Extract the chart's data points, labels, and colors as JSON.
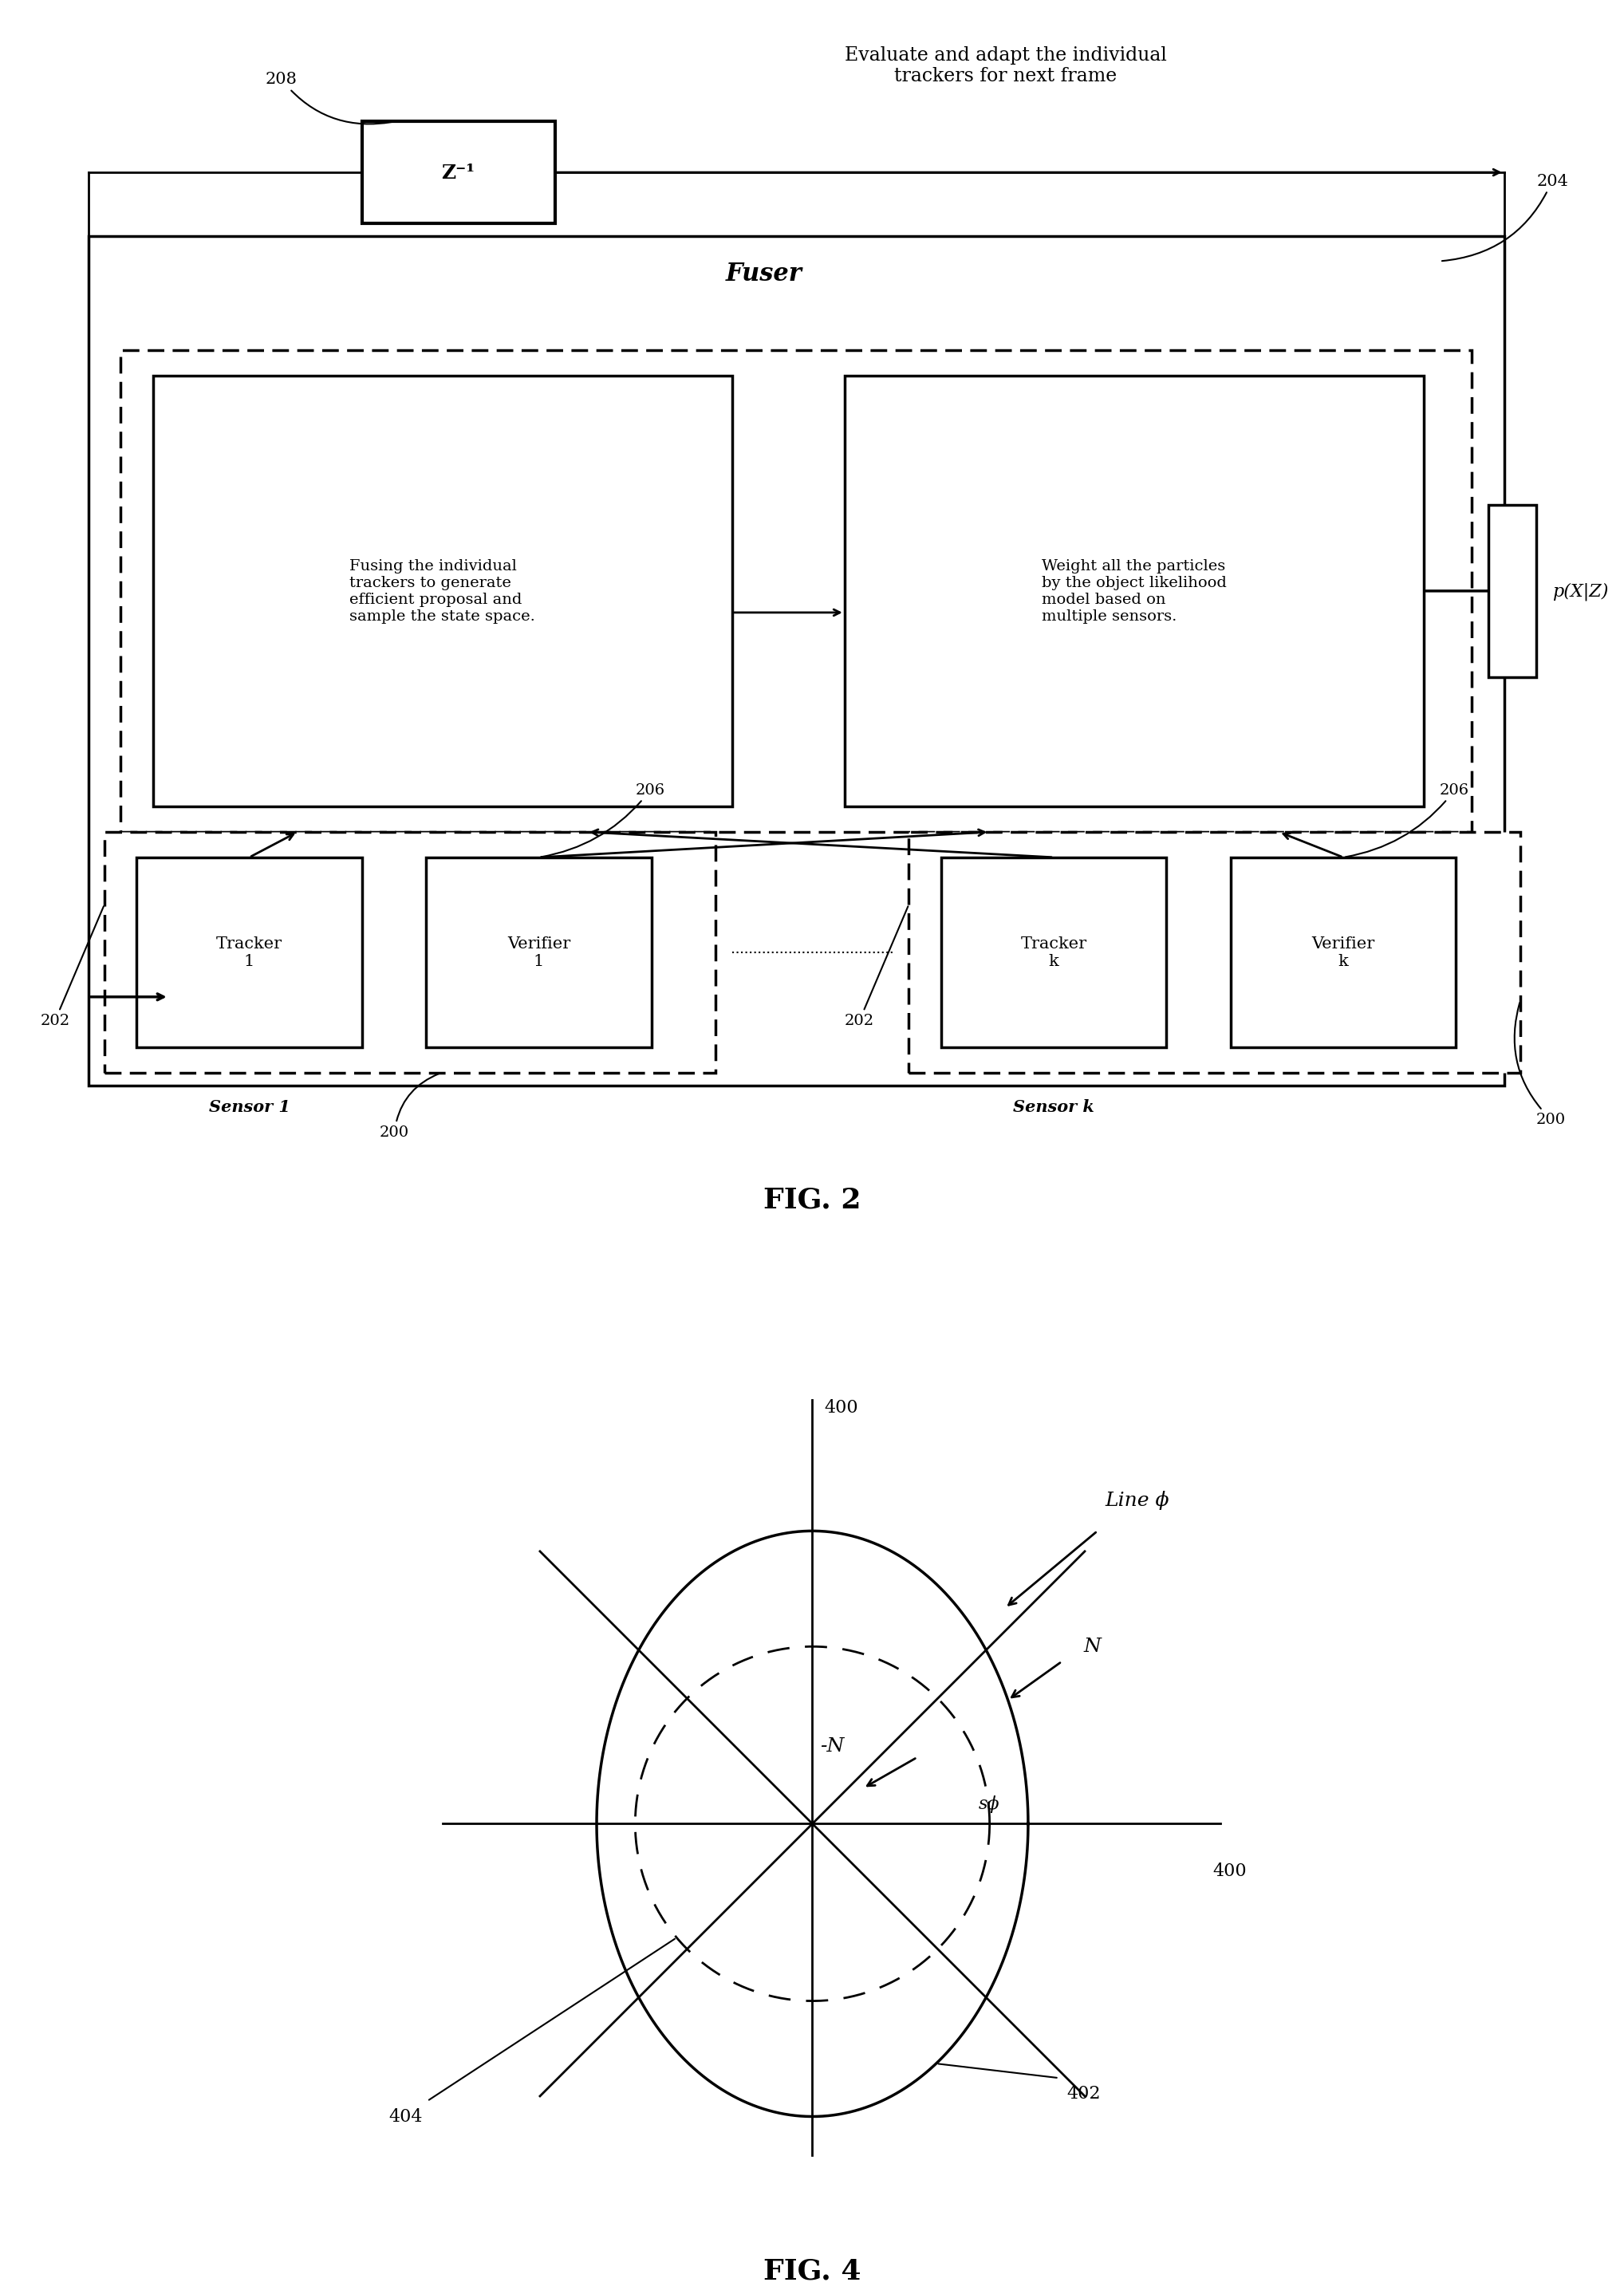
{
  "fig_width": 21.01,
  "fig_height": 29.45,
  "bg_color": "#ffffff",
  "fig2": {
    "title": "FIG. 2",
    "annotation_208": "208",
    "annotation_204": "204",
    "annotation_206_left": "206",
    "annotation_206_right": "206",
    "annotation_202_left": "202",
    "annotation_202_right": "202",
    "annotation_200_left": "200",
    "annotation_200_right": "200",
    "label_fuser": "Fuser",
    "label_z": "Z⁻¹",
    "label_sensor1": "Sensor 1",
    "label_sensork": "Sensor k",
    "label_pxz": "p(X|Z)",
    "text_top": "Evaluate and adapt the individual\ntrackers for next frame",
    "text_left_box": "Fusing the individual\ntrackers to generate\nefficient proposal and\nsample the state space.",
    "text_right_box": "Weight all the particles\nby the object likelihood\nmodel based on\nmultiple sensors.",
    "text_tracker1": "Tracker\n1",
    "text_verifier1": "Verifier\n1",
    "text_trackerk": "Tracker\nk",
    "text_verifierk": "Verifier\nk"
  },
  "fig4": {
    "title": "FIG. 4",
    "label_400_top": "400",
    "label_400_right": "400",
    "label_402": "402",
    "label_404": "404",
    "label_line_phi": "Line ϕ",
    "label_N": "N",
    "label_neg_N": "-N",
    "label_sphi": "sϕ"
  }
}
